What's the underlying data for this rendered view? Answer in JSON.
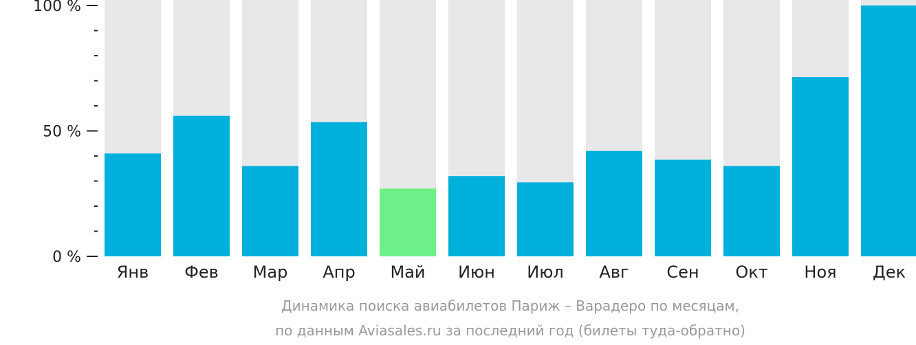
{
  "chart_data": {
    "type": "bar",
    "categories": [
      "Янв",
      "Фев",
      "Мар",
      "Апр",
      "Май",
      "Июн",
      "Июл",
      "Авг",
      "Сен",
      "Окт",
      "Ноя",
      "Дек"
    ],
    "values": [
      41,
      56,
      36,
      53.5,
      27,
      32,
      29.5,
      42,
      38.5,
      36,
      71.5,
      100
    ],
    "ylim": [
      0,
      100
    ],
    "y_ticks": [
      {
        "value": 0,
        "label": "0 %"
      },
      {
        "value": 50,
        "label": "50 %"
      },
      {
        "value": 100,
        "label": "100 %"
      }
    ],
    "y_minor_step": 10,
    "highlight_index": 4,
    "caption_lines": [
      "Динамика поиска авиабилетов Париж – Варадеро по месяцам,",
      "по данным Aviasales.ru за последний год (билеты туда-обратно)"
    ],
    "colors": {
      "bar": "#02b0dc",
      "highlight": "#6cf087",
      "track": "#e8e8ea",
      "axis": "#222222",
      "caption": "#999999"
    }
  }
}
